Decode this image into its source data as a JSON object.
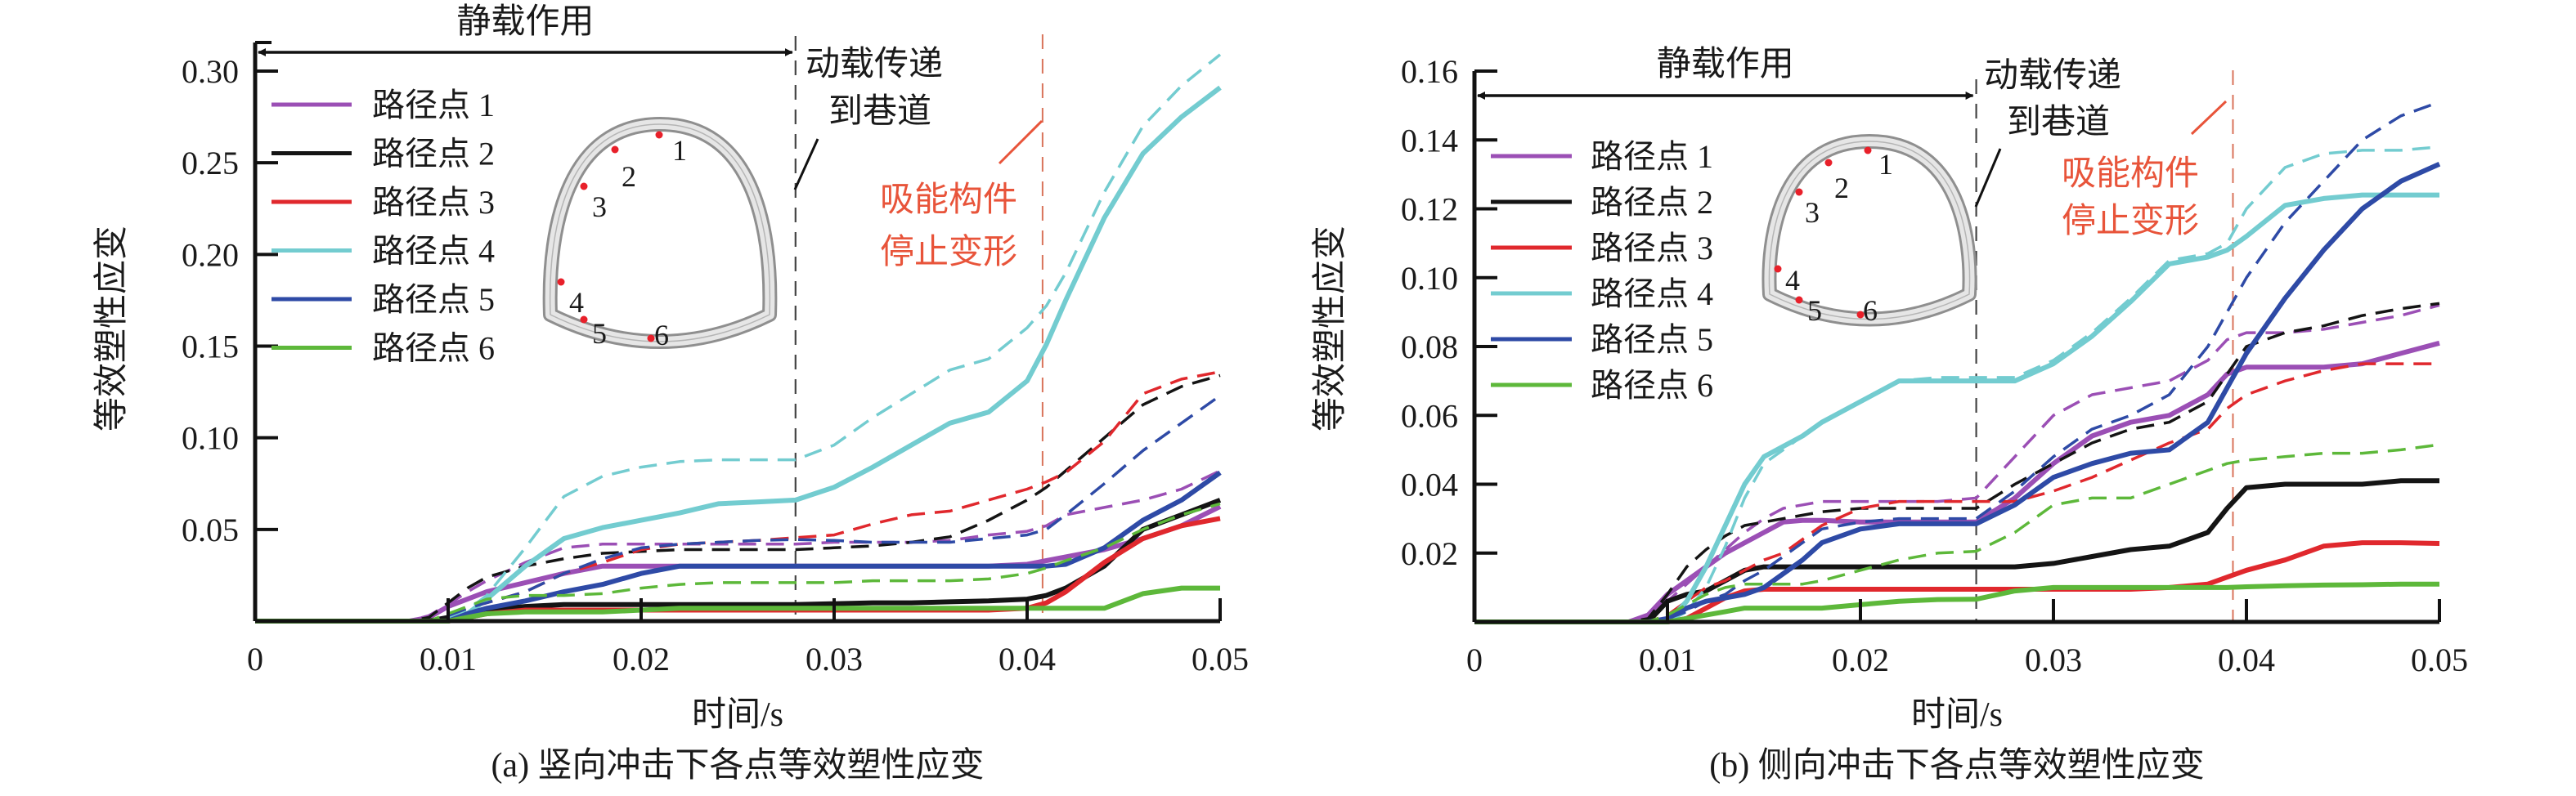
{
  "figure": {
    "y_axis_label": "等效塑性应变",
    "x_axis_label": "时间/s"
  },
  "legend": {
    "items": [
      {
        "label": "路径点 1",
        "color": "#9b4fb5"
      },
      {
        "label": "路径点 2",
        "color": "#141414"
      },
      {
        "label": "路径点 3",
        "color": "#e0282d"
      },
      {
        "label": "路径点 4",
        "color": "#73ccd0"
      },
      {
        "label": "路径点 5",
        "color": "#2e4aa6"
      },
      {
        "label": "路径点 6",
        "color": "#5db83a"
      }
    ]
  },
  "inset": {
    "point_labels": [
      "1",
      "2",
      "3",
      "4",
      "5",
      "6"
    ]
  },
  "chart_data": [
    {
      "type": "line",
      "title": "",
      "caption": "(a) 竖向冲击下各点等效塑性应变",
      "xlabel": "时间/s",
      "ylabel": "等效塑性应变",
      "xlim": [
        0,
        0.05
      ],
      "ylim": [
        0,
        0.31
      ],
      "xticks": [
        0,
        0.01,
        0.02,
        0.03,
        0.04,
        0.05
      ],
      "xtick_labels": [
        "0",
        "0.01",
        "0.02",
        "0.03",
        "0.04",
        "0.05"
      ],
      "yticks": [
        0.05,
        0.1,
        0.15,
        0.2,
        0.25,
        0.3
      ],
      "ytick_labels": [
        "0.05",
        "0.10",
        "0.15",
        "0.20",
        "0.25",
        "0.30"
      ],
      "grid": false,
      "legend_position": "top-left",
      "annotations": {
        "static_label": "静载作用",
        "dynamic_label_line1": "动载传递",
        "dynamic_label_line2": "到巷道",
        "absorber_label_line1": "吸能构件",
        "absorber_label_line2": "停止变形",
        "dynamic_time": 0.028,
        "absorber_stop_time": 0.0408
      },
      "x": [
        0,
        0.008,
        0.009,
        0.01,
        0.011,
        0.012,
        0.014,
        0.016,
        0.018,
        0.02,
        0.022,
        0.024,
        0.026,
        0.028,
        0.03,
        0.032,
        0.034,
        0.036,
        0.038,
        0.04,
        0.041,
        0.042,
        0.044,
        0.046,
        0.048,
        0.05
      ],
      "series": [
        {
          "name": "路径点 1",
          "style": "solid",
          "values": [
            0,
            0,
            0.002,
            0.008,
            0.012,
            0.016,
            0.021,
            0.026,
            0.03,
            0.03,
            0.03,
            0.03,
            0.03,
            0.03,
            0.03,
            0.03,
            0.03,
            0.03,
            0.03,
            0.031,
            0.033,
            0.035,
            0.039,
            0.045,
            0.052,
            0.0625
          ]
        },
        {
          "name": "路径点 1",
          "style": "dashed",
          "values": [
            0,
            0,
            0.003,
            0.009,
            0.016,
            0.022,
            0.032,
            0.04,
            0.042,
            0.042,
            0.042,
            0.042,
            0.042,
            0.042,
            0.043,
            0.043,
            0.043,
            0.044,
            0.047,
            0.049,
            0.052,
            0.058,
            0.062,
            0.066,
            0.072,
            0.082
          ]
        },
        {
          "name": "路径点 2",
          "style": "solid",
          "values": [
            0,
            0,
            0,
            0.002,
            0.004,
            0.006,
            0.008,
            0.009,
            0.009,
            0.009,
            0.009,
            0.009,
            0.009,
            0.009,
            0.0095,
            0.01,
            0.01,
            0.0105,
            0.011,
            0.012,
            0.014,
            0.018,
            0.03,
            0.05,
            0.058,
            0.066
          ]
        },
        {
          "name": "路径点 2",
          "style": "dashed",
          "values": [
            0,
            0,
            0.002,
            0.01,
            0.018,
            0.024,
            0.03,
            0.034,
            0.037,
            0.038,
            0.039,
            0.039,
            0.039,
            0.039,
            0.04,
            0.041,
            0.043,
            0.046,
            0.055,
            0.066,
            0.073,
            0.082,
            0.1,
            0.118,
            0.128,
            0.134
          ]
        },
        {
          "name": "路径点 3",
          "style": "solid",
          "values": [
            0,
            0,
            0,
            0,
            0.002,
            0.004,
            0.006,
            0.006,
            0.006,
            0.006,
            0.006,
            0.006,
            0.006,
            0.006,
            0.006,
            0.006,
            0.006,
            0.006,
            0.006,
            0.007,
            0.01,
            0.016,
            0.032,
            0.045,
            0.052,
            0.056
          ]
        },
        {
          "name": "路径点 3",
          "style": "dashed",
          "values": [
            0,
            0,
            0,
            0.003,
            0.007,
            0.01,
            0.016,
            0.026,
            0.032,
            0.039,
            0.042,
            0.043,
            0.044,
            0.0455,
            0.047,
            0.053,
            0.058,
            0.06,
            0.066,
            0.072,
            0.076,
            0.081,
            0.098,
            0.124,
            0.132,
            0.136
          ]
        },
        {
          "name": "路径点 4",
          "style": "solid",
          "values": [
            0,
            0,
            0,
            0,
            0.004,
            0.012,
            0.03,
            0.045,
            0.051,
            0.055,
            0.059,
            0.064,
            0.065,
            0.066,
            0.073,
            0.084,
            0.096,
            0.108,
            0.114,
            0.131,
            0.151,
            0.175,
            0.22,
            0.255,
            0.275,
            0.291
          ]
        },
        {
          "name": "路径点 4",
          "style": "dashed",
          "values": [
            0,
            0,
            0,
            0.002,
            0.006,
            0.014,
            0.04,
            0.068,
            0.079,
            0.084,
            0.087,
            0.088,
            0.088,
            0.088,
            0.096,
            0.111,
            0.124,
            0.137,
            0.143,
            0.16,
            0.172,
            0.19,
            0.234,
            0.27,
            0.292,
            0.309
          ]
        },
        {
          "name": "路径点 5",
          "style": "solid",
          "values": [
            0,
            0,
            0,
            0,
            0.004,
            0.007,
            0.011,
            0.016,
            0.02,
            0.026,
            0.03,
            0.03,
            0.03,
            0.03,
            0.03,
            0.03,
            0.03,
            0.03,
            0.03,
            0.03,
            0.03,
            0.031,
            0.04,
            0.055,
            0.066,
            0.081
          ]
        },
        {
          "name": "路径点 5",
          "style": "dashed",
          "values": [
            0,
            0,
            0,
            0.003,
            0.007,
            0.01,
            0.016,
            0.026,
            0.034,
            0.04,
            0.042,
            0.043,
            0.044,
            0.0445,
            0.044,
            0.043,
            0.043,
            0.043,
            0.045,
            0.047,
            0.05,
            0.058,
            0.075,
            0.093,
            0.108,
            0.123
          ]
        },
        {
          "name": "路径点 6",
          "style": "solid",
          "values": [
            0,
            0,
            0,
            0,
            0.002,
            0.004,
            0.005,
            0.005,
            0.005,
            0.006,
            0.007,
            0.007,
            0.007,
            0.007,
            0.007,
            0.007,
            0.007,
            0.007,
            0.007,
            0.007,
            0.007,
            0.007,
            0.007,
            0.015,
            0.018,
            0.018
          ]
        },
        {
          "name": "路径点 6",
          "style": "dashed",
          "values": [
            0,
            0,
            0,
            0.004,
            0.008,
            0.012,
            0.014,
            0.014,
            0.015,
            0.018,
            0.02,
            0.021,
            0.021,
            0.021,
            0.021,
            0.022,
            0.022,
            0.022,
            0.023,
            0.026,
            0.029,
            0.033,
            0.04,
            0.05,
            0.058,
            0.064
          ]
        }
      ]
    },
    {
      "type": "line",
      "title": "",
      "caption": "(b) 侧向冲击下各点等效塑性应变",
      "xlabel": "时间/s",
      "ylabel": "等效塑性应变",
      "xlim": [
        0,
        0.05
      ],
      "ylim": [
        0,
        0.16
      ],
      "xticks": [
        0,
        0.01,
        0.02,
        0.03,
        0.04,
        0.05
      ],
      "xtick_labels": [
        "0",
        "0.01",
        "0.02",
        "0.03",
        "0.04",
        "0.05"
      ],
      "yticks": [
        0.02,
        0.04,
        0.06,
        0.08,
        0.1,
        0.12,
        0.14,
        0.16
      ],
      "ytick_labels": [
        "0.02",
        "0.04",
        "0.06",
        "0.08",
        "0.10",
        "0.12",
        "0.14",
        "0.16"
      ],
      "grid": false,
      "legend_position": "top-left",
      "annotations": {
        "static_label": "静载作用",
        "dynamic_label_line1": "动载传递",
        "dynamic_label_line2": "到巷道",
        "absorber_label_line1": "吸能构件",
        "absorber_label_line2": "停止变形",
        "dynamic_time": 0.026,
        "absorber_stop_time": 0.0393
      },
      "x": [
        0,
        0.008,
        0.009,
        0.01,
        0.011,
        0.012,
        0.013,
        0.014,
        0.015,
        0.016,
        0.017,
        0.018,
        0.02,
        0.022,
        0.024,
        0.026,
        0.028,
        0.03,
        0.032,
        0.034,
        0.036,
        0.038,
        0.039,
        0.04,
        0.042,
        0.044,
        0.046,
        0.048,
        0.05
      ],
      "series": [
        {
          "name": "路径点 1",
          "style": "solid",
          "values": [
            0,
            0,
            0.002,
            0.008,
            0.012,
            0.016,
            0.02,
            0.023,
            0.026,
            0.029,
            0.0295,
            0.0295,
            0.029,
            0.029,
            0.029,
            0.029,
            0.036,
            0.046,
            0.054,
            0.058,
            0.06,
            0.066,
            0.072,
            0.074,
            0.074,
            0.074,
            0.075,
            0.078,
            0.081
          ]
        },
        {
          "name": "路径点 1",
          "style": "dashed",
          "values": [
            0,
            0,
            0.001,
            0.006,
            0.011,
            0.016,
            0.021,
            0.026,
            0.03,
            0.033,
            0.034,
            0.035,
            0.035,
            0.035,
            0.035,
            0.036,
            0.048,
            0.06,
            0.066,
            0.068,
            0.07,
            0.076,
            0.082,
            0.084,
            0.084,
            0.085,
            0.087,
            0.089,
            0.092
          ]
        },
        {
          "name": "路径点 2",
          "style": "solid",
          "values": [
            0,
            0,
            0,
            0.006,
            0.008,
            0.009,
            0.012,
            0.015,
            0.016,
            0.016,
            0.016,
            0.016,
            0.016,
            0.016,
            0.016,
            0.016,
            0.016,
            0.017,
            0.019,
            0.021,
            0.022,
            0.026,
            0.033,
            0.039,
            0.04,
            0.04,
            0.04,
            0.041,
            0.041
          ]
        },
        {
          "name": "路径点 2",
          "style": "dashed",
          "values": [
            0,
            0,
            0.001,
            0.008,
            0.016,
            0.021,
            0.025,
            0.028,
            0.029,
            0.03,
            0.031,
            0.032,
            0.033,
            0.033,
            0.033,
            0.033,
            0.04,
            0.046,
            0.052,
            0.056,
            0.058,
            0.064,
            0.072,
            0.08,
            0.084,
            0.086,
            0.089,
            0.091,
            0.0925
          ]
        },
        {
          "name": "路径点 3",
          "style": "solid",
          "values": [
            0,
            0,
            0,
            0,
            0.001,
            0.004,
            0.007,
            0.009,
            0.0095,
            0.0095,
            0.0095,
            0.0095,
            0.0095,
            0.0095,
            0.0095,
            0.0095,
            0.0095,
            0.0095,
            0.0095,
            0.0095,
            0.01,
            0.011,
            0.013,
            0.015,
            0.018,
            0.022,
            0.023,
            0.023,
            0.0228
          ]
        },
        {
          "name": "路径点 3",
          "style": "dashed",
          "values": [
            0,
            0,
            0,
            0.002,
            0.006,
            0.01,
            0.012,
            0.015,
            0.018,
            0.02,
            0.024,
            0.028,
            0.033,
            0.035,
            0.035,
            0.035,
            0.035,
            0.038,
            0.042,
            0.047,
            0.052,
            0.056,
            0.062,
            0.066,
            0.07,
            0.073,
            0.075,
            0.075,
            0.075
          ]
        },
        {
          "name": "路径点 4",
          "style": "solid",
          "values": [
            0,
            0,
            0,
            0,
            0.006,
            0.016,
            0.028,
            0.04,
            0.048,
            0.051,
            0.054,
            0.058,
            0.064,
            0.07,
            0.07,
            0.07,
            0.07,
            0.075,
            0.083,
            0.093,
            0.104,
            0.106,
            0.108,
            0.112,
            0.121,
            0.123,
            0.124,
            0.124,
            0.124
          ]
        },
        {
          "name": "路径点 4",
          "style": "dashed",
          "values": [
            0,
            0,
            0,
            0,
            0.003,
            0.01,
            0.022,
            0.036,
            0.046,
            0.05,
            0.054,
            0.058,
            0.064,
            0.07,
            0.071,
            0.071,
            0.071,
            0.076,
            0.084,
            0.094,
            0.105,
            0.107,
            0.11,
            0.12,
            0.132,
            0.136,
            0.137,
            0.137,
            0.138
          ]
        },
        {
          "name": "路径点 5",
          "style": "solid",
          "values": [
            0,
            0,
            0,
            0.001,
            0.004,
            0.006,
            0.007,
            0.008,
            0.01,
            0.014,
            0.018,
            0.023,
            0.027,
            0.0285,
            0.0285,
            0.0285,
            0.034,
            0.042,
            0.046,
            0.049,
            0.05,
            0.058,
            0.068,
            0.078,
            0.094,
            0.108,
            0.12,
            0.128,
            0.133
          ]
        },
        {
          "name": "路径点 5",
          "style": "dashed",
          "values": [
            0,
            0,
            0,
            0.001,
            0.003,
            0.006,
            0.008,
            0.012,
            0.015,
            0.019,
            0.023,
            0.027,
            0.029,
            0.03,
            0.03,
            0.03,
            0.038,
            0.048,
            0.056,
            0.06,
            0.066,
            0.08,
            0.09,
            0.1,
            0.116,
            0.128,
            0.14,
            0.147,
            0.151
          ]
        },
        {
          "name": "路径点 6",
          "style": "solid",
          "values": [
            0,
            0,
            0,
            0,
            0.001,
            0.002,
            0.003,
            0.004,
            0.004,
            0.004,
            0.004,
            0.004,
            0.005,
            0.006,
            0.0065,
            0.0066,
            0.009,
            0.01,
            0.01,
            0.01,
            0.01,
            0.01,
            0.01,
            0.0102,
            0.0105,
            0.0107,
            0.0108,
            0.011,
            0.011
          ]
        },
        {
          "name": "路径点 6",
          "style": "dashed",
          "values": [
            0,
            0,
            0,
            0.002,
            0.005,
            0.008,
            0.01,
            0.011,
            0.011,
            0.011,
            0.011,
            0.012,
            0.015,
            0.018,
            0.02,
            0.0205,
            0.026,
            0.034,
            0.036,
            0.036,
            0.04,
            0.044,
            0.046,
            0.047,
            0.048,
            0.049,
            0.049,
            0.05,
            0.0515
          ]
        }
      ]
    }
  ]
}
